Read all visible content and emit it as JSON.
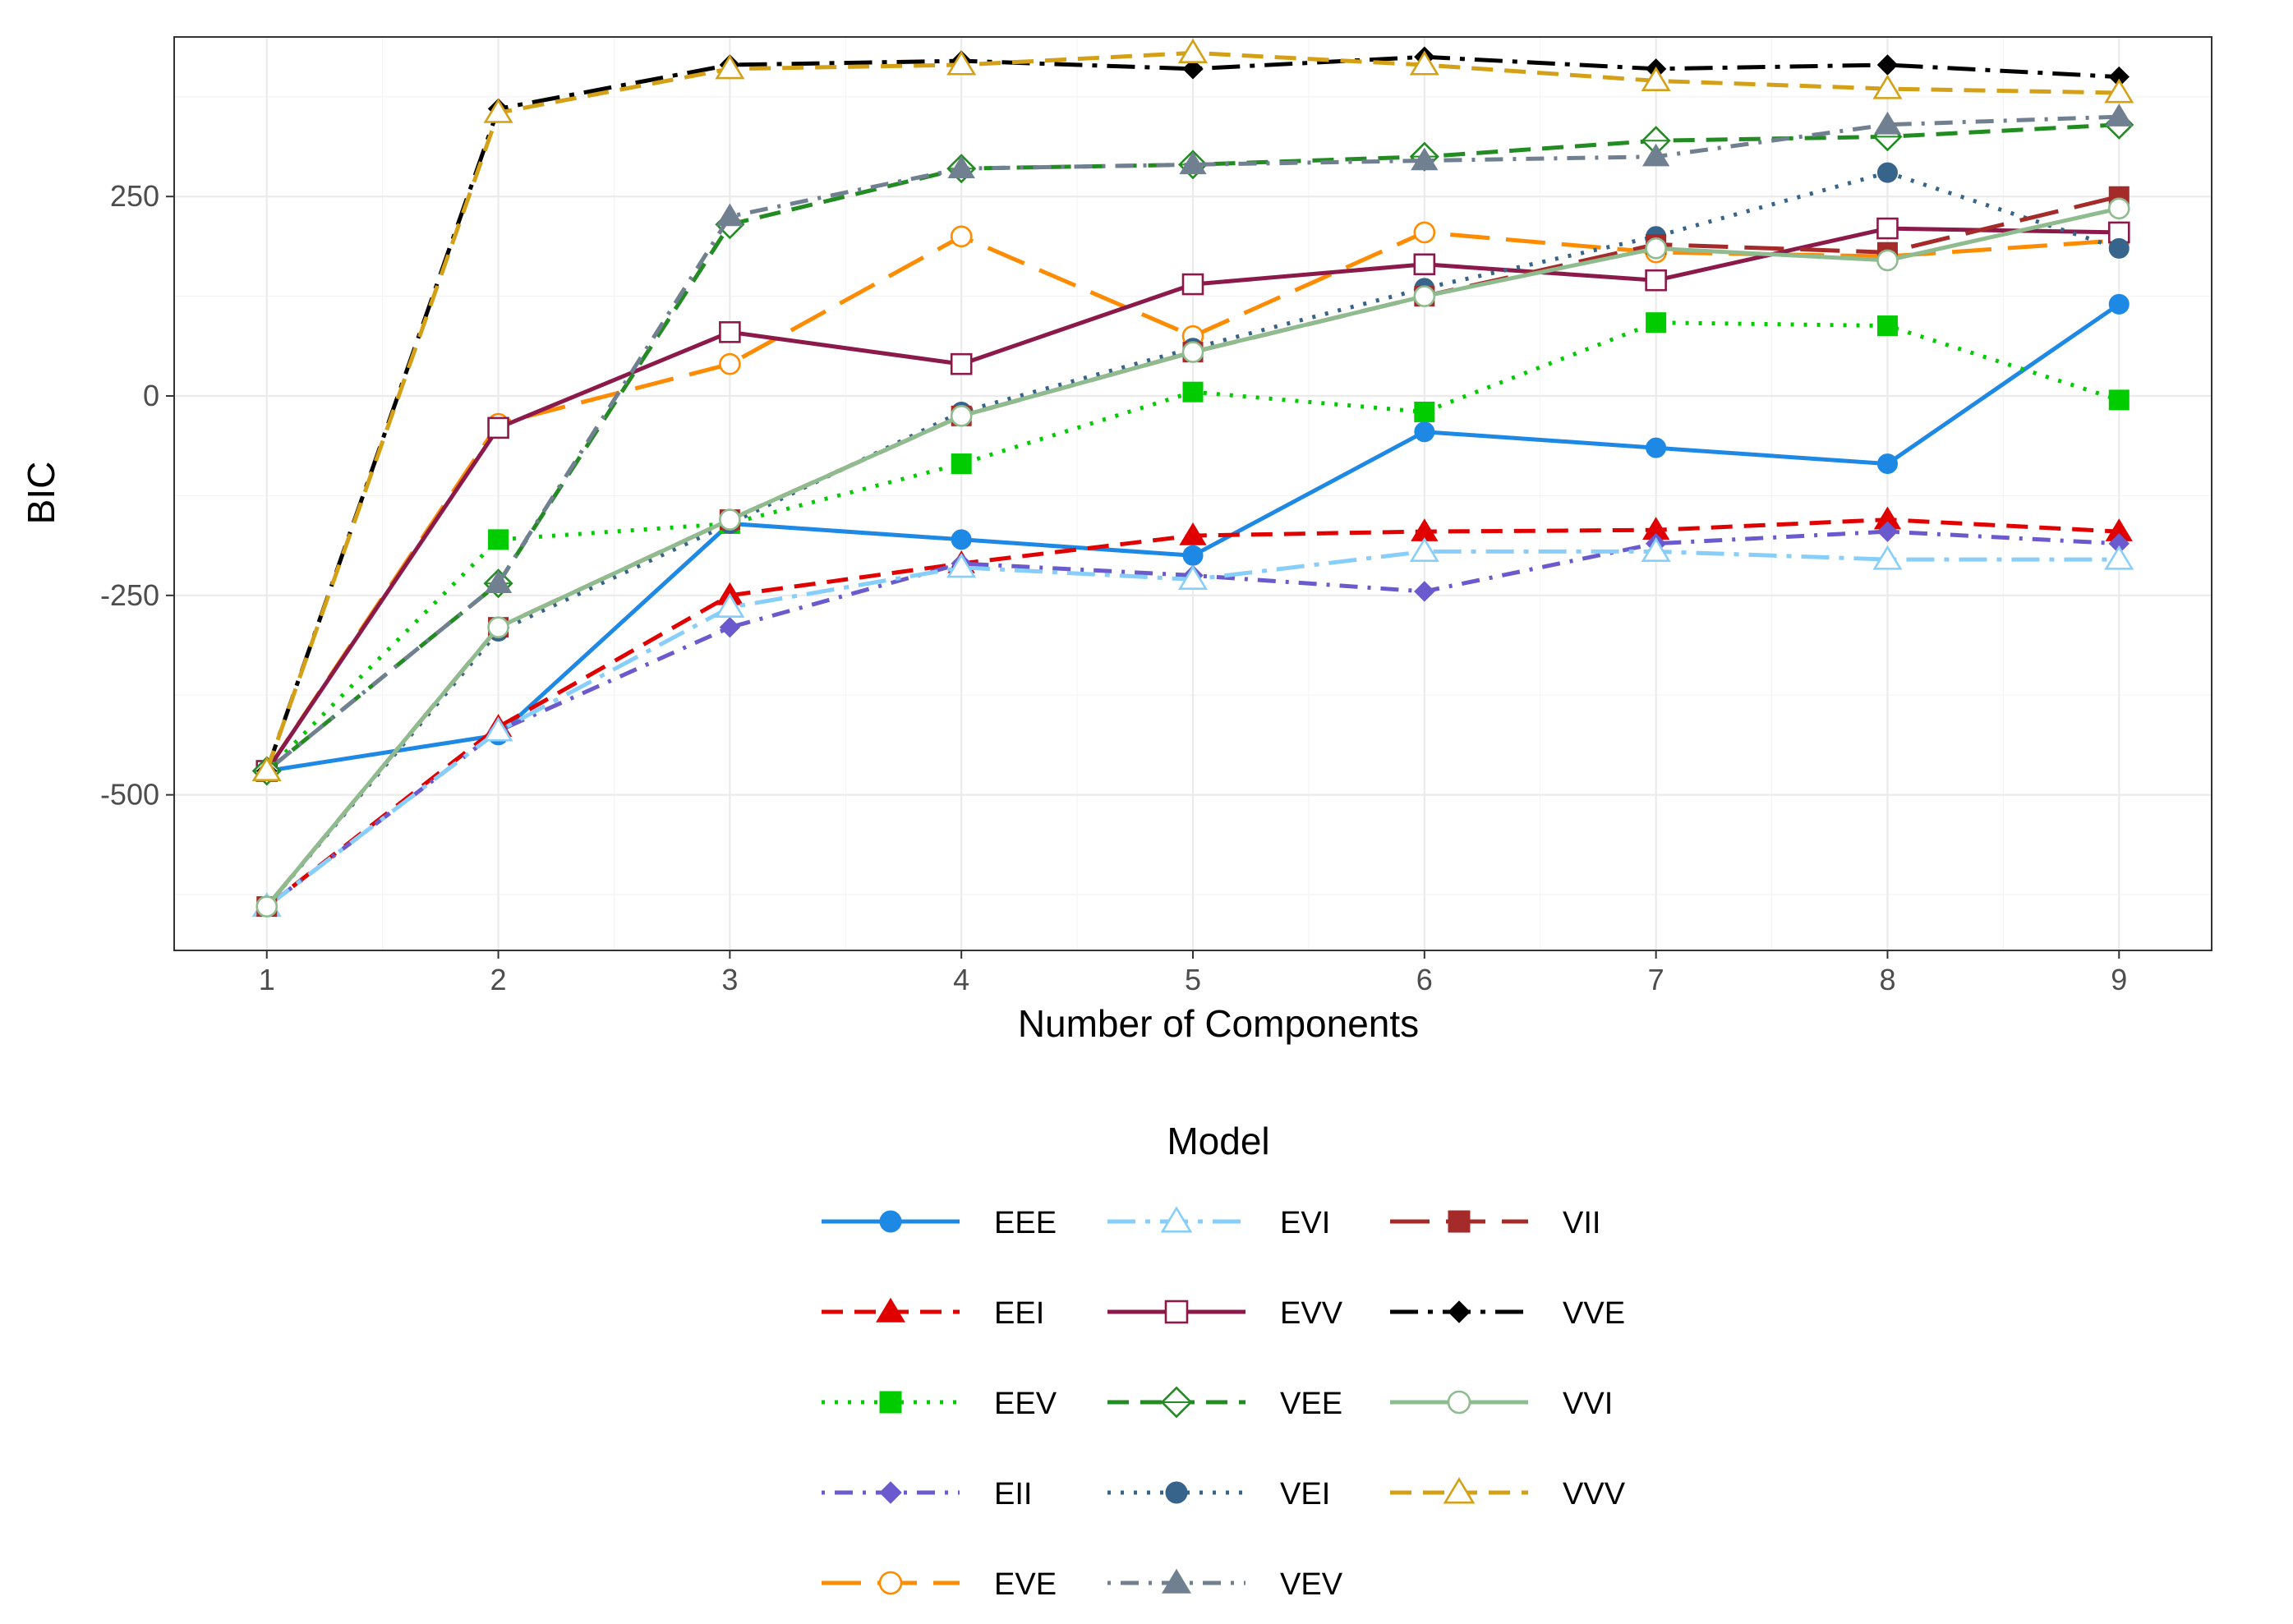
{
  "chart_data": {
    "type": "line",
    "title": "",
    "xlabel": "Number of Components",
    "ylabel": "BIC",
    "xlim": [
      0.6,
      9.4
    ],
    "ylim": [
      -695,
      450
    ],
    "xticks": [
      1,
      2,
      3,
      4,
      5,
      6,
      7,
      8,
      9
    ],
    "yticks": [
      -500,
      -250,
      0,
      250
    ],
    "ytick_labels": [
      "-500",
      "-250",
      "0",
      "250"
    ],
    "grid": true,
    "legend_title": "Model",
    "legend_position": "bottom",
    "x": [
      1,
      2,
      3,
      4,
      5,
      6,
      7,
      8,
      9
    ],
    "series": [
      {
        "name": "EEE",
        "color": "#1E88E5",
        "dash": "solid",
        "shape": "circle-filled",
        "values": [
          -470,
          -425,
          -160,
          -180,
          -200,
          -45,
          -65,
          -85,
          115
        ]
      },
      {
        "name": "EEI",
        "color": "#E00000",
        "dash": "dashed",
        "shape": "triangle-filled",
        "values": [
          -640,
          -415,
          -250,
          -210,
          -175,
          -170,
          -168,
          -155,
          -170
        ]
      },
      {
        "name": "EEV",
        "color": "#00CC00",
        "dash": "dotted",
        "shape": "square-filled",
        "values": [
          -470,
          -180,
          -160,
          -85,
          5,
          -20,
          92,
          88,
          -5
        ]
      },
      {
        "name": "EII",
        "color": "#6A5ACD",
        "dash": "dashdot",
        "shape": "diamond-filled",
        "values": [
          -640,
          -420,
          -290,
          -210,
          -225,
          -245,
          -185,
          -170,
          -185
        ]
      },
      {
        "name": "EVE",
        "color": "#FF8C00",
        "dash": "longdash",
        "shape": "circle-open",
        "values": [
          -470,
          -35,
          40,
          200,
          75,
          205,
          180,
          175,
          195
        ]
      },
      {
        "name": "EVI",
        "color": "#87CEFA",
        "dash": "longdashdot",
        "shape": "triangle-open",
        "values": [
          -640,
          -420,
          -265,
          -215,
          -230,
          -195,
          -195,
          -205,
          -205
        ]
      },
      {
        "name": "EVV",
        "color": "#8B1A4A",
        "dash": "solid",
        "shape": "square-open",
        "values": [
          -470,
          -40,
          80,
          40,
          140,
          165,
          145,
          210,
          205
        ]
      },
      {
        "name": "VEE",
        "color": "#228B22",
        "dash": "dashed",
        "shape": "diamond-open",
        "values": [
          -470,
          -235,
          215,
          285,
          290,
          300,
          320,
          325,
          340
        ]
      },
      {
        "name": "VEI",
        "color": "#36648B",
        "dash": "dotted",
        "shape": "circle-filled",
        "values": [
          -640,
          -295,
          -160,
          -20,
          60,
          135,
          200,
          280,
          185
        ]
      },
      {
        "name": "VEV",
        "color": "#708090",
        "dash": "dashdot",
        "shape": "triangle-filled",
        "values": [
          -470,
          -235,
          225,
          285,
          290,
          295,
          300,
          340,
          350
        ]
      },
      {
        "name": "VII",
        "color": "#A52A2A",
        "dash": "longdash",
        "shape": "square-filled",
        "values": [
          -640,
          -290,
          -155,
          -25,
          55,
          125,
          190,
          180,
          250
        ]
      },
      {
        "name": "VVE",
        "color": "#000000",
        "dash": "longdashdot",
        "shape": "diamond-filled",
        "values": [
          -470,
          360,
          415,
          420,
          410,
          425,
          410,
          415,
          400
        ]
      },
      {
        "name": "VVI",
        "color": "#8FBC8F",
        "dash": "solid",
        "shape": "circle-open",
        "values": [
          -640,
          -290,
          -155,
          -25,
          55,
          125,
          185,
          170,
          235
        ]
      },
      {
        "name": "VVV",
        "color": "#D4A017",
        "dash": "dashed",
        "shape": "triangle-open",
        "values": [
          -470,
          355,
          410,
          415,
          430,
          415,
          395,
          385,
          380
        ]
      }
    ]
  }
}
